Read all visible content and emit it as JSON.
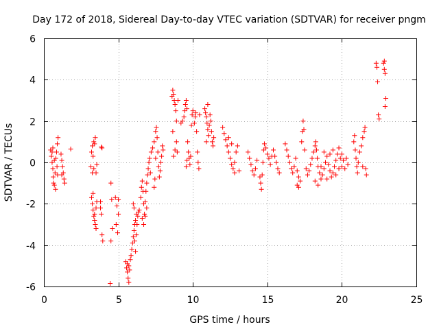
{
  "chart_data": {
    "type": "scatter",
    "title": "Day 172 of 2018, Sidereal Day-to-day VTEC variation (SDTVAR) for receiver pngm",
    "xlabel": "GPS time / hours",
    "ylabel": "SDTVAR / TECUs",
    "xlim": [
      0,
      25
    ],
    "ylim": [
      -6,
      6
    ],
    "xticks": [
      0,
      5,
      10,
      15,
      20,
      25
    ],
    "yticks": [
      -6,
      -4,
      -2,
      0,
      2,
      4,
      6
    ],
    "grid": true,
    "marker": "+",
    "color": "#ff0000",
    "series": [
      {
        "name": "SDTVAR",
        "points": [
          [
            0.45,
            0.6
          ],
          [
            0.5,
            0.3
          ],
          [
            0.55,
            0.0
          ],
          [
            0.6,
            -0.3
          ],
          [
            0.62,
            -0.7
          ],
          [
            0.65,
            -1.0
          ],
          [
            0.7,
            -1.1
          ],
          [
            0.75,
            -0.5
          ],
          [
            0.8,
            0.2
          ],
          [
            0.85,
            0.5
          ],
          [
            0.9,
            0.9
          ],
          [
            0.95,
            1.2
          ],
          [
            0.78,
            -1.3
          ],
          [
            0.6,
            0.7
          ],
          [
            0.55,
            0.5
          ],
          [
            0.7,
            0.1
          ],
          [
            0.88,
            -0.2
          ],
          [
            0.92,
            -0.6
          ],
          [
            1.15,
            0.4
          ],
          [
            1.2,
            0.1
          ],
          [
            1.25,
            -0.2
          ],
          [
            1.3,
            -0.5
          ],
          [
            1.35,
            -0.8
          ],
          [
            1.4,
            -1.0
          ],
          [
            1.2,
            -0.6
          ],
          [
            1.8,
            0.65
          ],
          [
            3.15,
            -0.2
          ],
          [
            3.2,
            0.5
          ],
          [
            3.25,
            0.8
          ],
          [
            3.3,
            0.3
          ],
          [
            3.35,
            -0.3
          ],
          [
            3.4,
            0.9
          ],
          [
            3.45,
            1.2
          ],
          [
            3.5,
            -0.5
          ],
          [
            3.55,
            -0.1
          ],
          [
            3.25,
            -0.5
          ],
          [
            3.35,
            1.0
          ],
          [
            3.2,
            -1.7
          ],
          [
            3.25,
            -2.0
          ],
          [
            3.3,
            -2.3
          ],
          [
            3.35,
            -2.6
          ],
          [
            3.4,
            -2.8
          ],
          [
            3.45,
            -3.0
          ],
          [
            3.5,
            -2.2
          ],
          [
            3.55,
            -1.9
          ],
          [
            3.3,
            -1.5
          ],
          [
            3.4,
            -2.5
          ],
          [
            3.5,
            -3.2
          ],
          [
            3.8,
            -1.9
          ],
          [
            3.85,
            -2.5
          ],
          [
            3.9,
            -3.5
          ],
          [
            3.95,
            -3.8
          ],
          [
            3.8,
            -2.2
          ],
          [
            3.85,
            0.75
          ],
          [
            3.9,
            0.7
          ],
          [
            4.5,
            -1.0
          ],
          [
            4.55,
            -1.8
          ],
          [
            4.6,
            -3.2
          ],
          [
            4.5,
            -3.8
          ],
          [
            4.45,
            -5.85
          ],
          [
            4.8,
            -1.7
          ],
          [
            4.9,
            -2.1
          ],
          [
            5.0,
            -2.5
          ],
          [
            4.85,
            -3.0
          ],
          [
            4.95,
            -3.4
          ],
          [
            5.0,
            -1.8
          ],
          [
            5.5,
            -4.8
          ],
          [
            5.55,
            -5.1
          ],
          [
            5.6,
            -5.3
          ],
          [
            5.65,
            -5.6
          ],
          [
            5.7,
            -5.8
          ],
          [
            5.75,
            -5.2
          ],
          [
            5.8,
            -4.7
          ],
          [
            5.85,
            -4.5
          ],
          [
            5.6,
            -4.9
          ],
          [
            5.7,
            -5.0
          ],
          [
            5.9,
            -4.2
          ],
          [
            5.95,
            -3.9
          ],
          [
            6.0,
            -3.6
          ],
          [
            6.05,
            -3.3
          ],
          [
            6.1,
            -3.0
          ],
          [
            6.15,
            -2.8
          ],
          [
            6.2,
            -2.5
          ],
          [
            6.0,
            -2.0
          ],
          [
            6.05,
            -2.2
          ],
          [
            6.1,
            -3.8
          ],
          [
            6.15,
            -4.3
          ],
          [
            6.2,
            -3.5
          ],
          [
            6.25,
            -3.0
          ],
          [
            6.3,
            -2.6
          ],
          [
            6.35,
            -2.4
          ],
          [
            6.4,
            -2.3
          ],
          [
            6.5,
            -1.7
          ],
          [
            6.55,
            -1.2
          ],
          [
            6.6,
            -0.9
          ],
          [
            6.65,
            -1.4
          ],
          [
            6.7,
            -2.0
          ],
          [
            6.75,
            -2.5
          ],
          [
            6.8,
            -1.9
          ],
          [
            6.85,
            -1.4
          ],
          [
            6.9,
            -1.0
          ],
          [
            6.95,
            -0.6
          ],
          [
            7.0,
            -0.3
          ],
          [
            7.05,
            0.0
          ],
          [
            7.1,
            0.2
          ],
          [
            7.15,
            -0.5
          ],
          [
            6.6,
            -2.7
          ],
          [
            6.7,
            -3.0
          ],
          [
            6.8,
            -2.6
          ],
          [
            6.9,
            -2.2
          ],
          [
            7.2,
            0.5
          ],
          [
            7.3,
            0.7
          ],
          [
            7.4,
            1.0
          ],
          [
            7.5,
            1.5
          ],
          [
            7.55,
            1.7
          ],
          [
            7.6,
            1.2
          ],
          [
            7.65,
            0.5
          ],
          [
            7.7,
            -0.2
          ],
          [
            7.75,
            -0.7
          ],
          [
            7.8,
            -0.4
          ],
          [
            7.85,
            0.0
          ],
          [
            7.9,
            0.3
          ],
          [
            7.95,
            0.8
          ],
          [
            8.0,
            0.6
          ],
          [
            7.45,
            -0.8
          ],
          [
            7.4,
            -1.2
          ],
          [
            7.5,
            0.2
          ],
          [
            8.6,
            3.2
          ],
          [
            8.65,
            3.5
          ],
          [
            8.7,
            3.3
          ],
          [
            8.75,
            3.0
          ],
          [
            8.8,
            2.8
          ],
          [
            8.85,
            2.5
          ],
          [
            8.9,
            1.0
          ],
          [
            8.95,
            0.5
          ],
          [
            8.7,
            0.3
          ],
          [
            8.8,
            0.6
          ],
          [
            8.9,
            2.0
          ],
          [
            9.0,
            3.0
          ],
          [
            8.65,
            1.5
          ],
          [
            9.2,
            1.9
          ],
          [
            9.3,
            2.0
          ],
          [
            9.4,
            2.2
          ],
          [
            9.45,
            2.5
          ],
          [
            9.5,
            2.8
          ],
          [
            9.55,
            3.0
          ],
          [
            9.6,
            2.6
          ],
          [
            9.65,
            1.0
          ],
          [
            9.7,
            0.5
          ],
          [
            9.75,
            0.2
          ],
          [
            9.8,
            -0.1
          ],
          [
            9.85,
            0.3
          ],
          [
            9.9,
            1.8
          ],
          [
            9.95,
            2.3
          ],
          [
            10.0,
            2.5
          ],
          [
            9.55,
            -0.2
          ],
          [
            9.6,
            0.1
          ],
          [
            10.1,
            1.9
          ],
          [
            10.15,
            2.2
          ],
          [
            10.2,
            2.4
          ],
          [
            10.25,
            1.5
          ],
          [
            10.3,
            0.5
          ],
          [
            10.35,
            0.0
          ],
          [
            10.4,
            -0.3
          ],
          [
            10.45,
            2.3
          ],
          [
            10.8,
            2.6
          ],
          [
            10.85,
            2.4
          ],
          [
            10.9,
            2.2
          ],
          [
            10.95,
            1.9
          ],
          [
            11.0,
            1.6
          ],
          [
            11.05,
            1.3
          ],
          [
            11.1,
            1.8
          ],
          [
            11.15,
            2.3
          ],
          [
            11.2,
            2.0
          ],
          [
            11.25,
            1.5
          ],
          [
            11.3,
            1.0
          ],
          [
            11.35,
            0.8
          ],
          [
            11.4,
            1.2
          ],
          [
            11.0,
            2.8
          ],
          [
            10.9,
            1.0
          ],
          [
            12.0,
            1.7
          ],
          [
            12.1,
            1.4
          ],
          [
            12.2,
            1.1
          ],
          [
            12.3,
            0.8
          ],
          [
            12.4,
            0.5
          ],
          [
            12.5,
            0.2
          ],
          [
            12.6,
            -0.1
          ],
          [
            12.7,
            -0.3
          ],
          [
            12.8,
            0.0
          ],
          [
            12.9,
            0.5
          ],
          [
            13.0,
            0.8
          ],
          [
            13.1,
            -0.4
          ],
          [
            12.4,
            1.2
          ],
          [
            12.6,
            0.9
          ],
          [
            12.8,
            -0.5
          ],
          [
            13.7,
            0.5
          ],
          [
            13.8,
            0.2
          ],
          [
            13.9,
            -0.1
          ],
          [
            14.0,
            -0.4
          ],
          [
            14.1,
            -0.6
          ],
          [
            14.2,
            -0.3
          ],
          [
            14.3,
            0.1
          ],
          [
            14.5,
            -0.7
          ],
          [
            14.55,
            -1.0
          ],
          [
            14.6,
            -1.3
          ],
          [
            14.65,
            -0.6
          ],
          [
            14.7,
            0.0
          ],
          [
            14.75,
            0.6
          ],
          [
            14.8,
            0.9
          ],
          [
            14.9,
            0.7
          ],
          [
            15.0,
            0.4
          ],
          [
            15.1,
            0.2
          ],
          [
            15.2,
            -0.1
          ],
          [
            15.3,
            0.3
          ],
          [
            15.4,
            0.6
          ],
          [
            15.5,
            0.3
          ],
          [
            15.6,
            0.0
          ],
          [
            15.7,
            -0.3
          ],
          [
            15.8,
            -0.5
          ],
          [
            16.2,
            0.9
          ],
          [
            16.3,
            0.6
          ],
          [
            16.4,
            0.3
          ],
          [
            16.5,
            0.0
          ],
          [
            16.6,
            -0.3
          ],
          [
            16.7,
            -0.5
          ],
          [
            16.8,
            -0.2
          ],
          [
            16.9,
            0.2
          ],
          [
            17.0,
            -0.4
          ],
          [
            17.1,
            -0.7
          ],
          [
            17.2,
            -0.9
          ],
          [
            17.0,
            -1.1
          ],
          [
            17.1,
            -1.2
          ],
          [
            17.3,
            1.0
          ],
          [
            17.35,
            1.5
          ],
          [
            17.4,
            2.0
          ],
          [
            17.45,
            1.6
          ],
          [
            17.5,
            0.6
          ],
          [
            17.6,
            -0.3
          ],
          [
            17.7,
            -0.6
          ],
          [
            17.8,
            -0.4
          ],
          [
            17.9,
            -0.1
          ],
          [
            18.0,
            0.2
          ],
          [
            18.1,
            0.5
          ],
          [
            18.2,
            0.8
          ],
          [
            18.25,
            1.0
          ],
          [
            18.3,
            0.6
          ],
          [
            18.35,
            0.2
          ],
          [
            18.4,
            -0.2
          ],
          [
            18.5,
            -0.5
          ],
          [
            18.6,
            -0.8
          ],
          [
            18.7,
            -0.6
          ],
          [
            18.8,
            -0.3
          ],
          [
            18.9,
            0.0
          ],
          [
            19.0,
            0.3
          ],
          [
            19.1,
            -0.1
          ],
          [
            19.2,
            -0.4
          ],
          [
            19.3,
            -0.7
          ],
          [
            19.4,
            -0.5
          ],
          [
            19.5,
            -0.2
          ],
          [
            19.6,
            0.1
          ],
          [
            19.7,
            0.4
          ],
          [
            19.8,
            0.7
          ],
          [
            19.9,
            0.2
          ],
          [
            20.0,
            -0.2
          ],
          [
            20.1,
            0.1
          ],
          [
            20.2,
            -0.3
          ],
          [
            20.3,
            0.2
          ],
          [
            20.4,
            -0.1
          ],
          [
            18.2,
            -0.9
          ],
          [
            18.4,
            -1.1
          ],
          [
            18.6,
            -0.2
          ],
          [
            18.8,
            0.5
          ],
          [
            19.0,
            -0.8
          ],
          [
            19.2,
            0.4
          ],
          [
            19.4,
            0.6
          ],
          [
            19.6,
            -0.6
          ],
          [
            19.8,
            -0.3
          ],
          [
            20.0,
            0.4
          ],
          [
            20.8,
            1.0
          ],
          [
            20.85,
            1.3
          ],
          [
            20.9,
            0.6
          ],
          [
            20.95,
            0.2
          ],
          [
            21.0,
            -0.2
          ],
          [
            21.05,
            -0.5
          ],
          [
            21.1,
            0.0
          ],
          [
            21.2,
            0.5
          ],
          [
            21.3,
            0.8
          ],
          [
            21.4,
            1.2
          ],
          [
            21.5,
            1.5
          ],
          [
            21.55,
            1.7
          ],
          [
            21.6,
            -0.3
          ],
          [
            21.65,
            -0.6
          ],
          [
            21.4,
            -0.2
          ],
          [
            22.3,
            4.8
          ],
          [
            22.35,
            4.6
          ],
          [
            22.4,
            3.9
          ],
          [
            22.45,
            2.3
          ],
          [
            22.5,
            2.1
          ],
          [
            22.8,
            4.8
          ],
          [
            22.85,
            4.5
          ],
          [
            22.9,
            4.3
          ],
          [
            22.95,
            3.1
          ],
          [
            22.9,
            2.7
          ],
          [
            22.85,
            4.9
          ]
        ]
      }
    ]
  }
}
